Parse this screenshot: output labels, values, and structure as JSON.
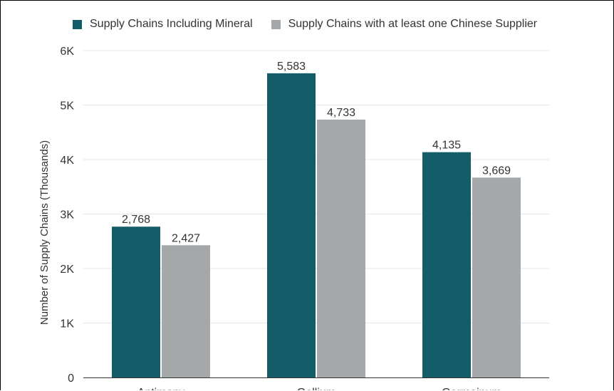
{
  "chart_data": {
    "type": "bar",
    "categories": [
      "Antimony",
      "Gallium",
      "Germainum"
    ],
    "series": [
      {
        "name": "Supply Chains Including Mineral",
        "values": [
          2768,
          5583,
          4135
        ],
        "color": "#125d68"
      },
      {
        "name": "Supply Chains with at least one Chinese Supplier",
        "values": [
          2427,
          4733,
          3669
        ],
        "color": "#a5a8ab"
      }
    ],
    "data_labels": [
      [
        "2,768",
        "5,583",
        "4,135"
      ],
      [
        "2,427",
        "4,733",
        "3,669"
      ]
    ],
    "ylabel": "Number of Supply Chains (Thousands)",
    "xlabel": "",
    "ylim": [
      0,
      6000
    ],
    "yticks": [
      0,
      1000,
      2000,
      3000,
      4000,
      5000,
      6000
    ],
    "ytick_labels": [
      "0",
      "1K",
      "2K",
      "3K",
      "4K",
      "5K",
      "6K"
    ],
    "grid": true,
    "legend_position": "top"
  }
}
